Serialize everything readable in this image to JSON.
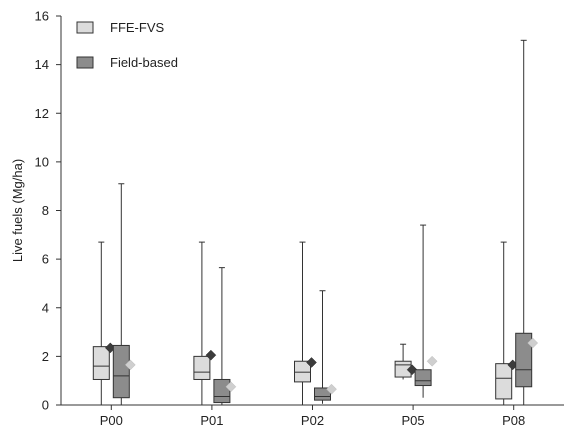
{
  "chart_data": {
    "type": "box",
    "ylabel": "Live fuels (Mg/ha)",
    "xlabel": "",
    "ylim": [
      0,
      16
    ],
    "yticks": [
      0,
      2,
      4,
      6,
      8,
      10,
      12,
      14,
      16
    ],
    "categories": [
      "P00",
      "P01",
      "P02",
      "P05",
      "P08"
    ],
    "legend_position": "top-left",
    "series": [
      {
        "name": "FFE-FVS",
        "box_color": "#dcdcdc",
        "mean_marker_color": "#3c3c3c",
        "boxes": [
          {
            "min": 0,
            "q1": 1.05,
            "median": 1.6,
            "q3": 2.4,
            "max": 6.7,
            "mean": 2.35
          },
          {
            "min": 0,
            "q1": 1.05,
            "median": 1.35,
            "q3": 2.0,
            "max": 6.7,
            "mean": 2.05
          },
          {
            "min": 0,
            "q1": 0.95,
            "median": 1.35,
            "q3": 1.8,
            "max": 6.7,
            "mean": 1.75
          },
          {
            "min": 1.05,
            "q1": 1.15,
            "median": 1.65,
            "q3": 1.8,
            "max": 2.5,
            "mean": 1.45
          },
          {
            "min": 0,
            "q1": 0.25,
            "median": 1.1,
            "q3": 1.7,
            "max": 6.7,
            "mean": 1.65
          }
        ]
      },
      {
        "name": "Field-based",
        "box_color": "#8c8c8c",
        "mean_marker_color": "#cfcfcf",
        "boxes": [
          {
            "min": 0,
            "q1": 0.3,
            "median": 1.2,
            "q3": 2.45,
            "max": 9.1,
            "mean": 1.65
          },
          {
            "min": 0,
            "q1": 0.1,
            "median": 0.35,
            "q3": 1.05,
            "max": 5.65,
            "mean": 0.75
          },
          {
            "min": 0.05,
            "q1": 0.2,
            "median": 0.35,
            "q3": 0.7,
            "max": 4.7,
            "mean": 0.65
          },
          {
            "min": 0.3,
            "q1": 0.8,
            "median": 1.0,
            "q3": 1.45,
            "max": 7.4,
            "mean": 1.8
          },
          {
            "min": 0,
            "q1": 0.75,
            "median": 1.45,
            "q3": 2.95,
            "max": 15.0,
            "mean": 2.55
          }
        ]
      }
    ]
  }
}
